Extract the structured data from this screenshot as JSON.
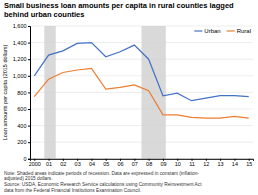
{
  "chart_data": {
    "type": "line",
    "title": "Small business loan amounts per capita in rural counties lagged behind urban counties",
    "y_label": "Loan amounts per capita (2015 dollars)",
    "categories": [
      "2000",
      "01",
      "02",
      "03",
      "04",
      "05",
      "06",
      "07",
      "08",
      "09",
      "10",
      "11",
      "12",
      "13",
      "14",
      "15"
    ],
    "series": [
      {
        "name": "Urban",
        "color": "#4472C4",
        "values": [
          1000,
          1250,
          1300,
          1390,
          1400,
          1230,
          1290,
          1370,
          1200,
          760,
          790,
          700,
          730,
          760,
          760,
          750
        ]
      },
      {
        "name": "Rural",
        "color": "#ED7D31",
        "values": [
          750,
          960,
          1040,
          1070,
          1090,
          840,
          860,
          890,
          820,
          530,
          530,
          500,
          490,
          490,
          510,
          490
        ]
      }
    ],
    "shaded_bands": [
      [
        0.7,
        1.5
      ],
      [
        7.5,
        9.2
      ]
    ],
    "ylim": [
      0,
      1600
    ],
    "yticks": [
      0,
      200,
      400,
      600,
      800,
      {
        "value": 1000,
        "label": "1,000"
      },
      {
        "value": 1200,
        "label": "1,200"
      },
      {
        "value": 1400,
        "label": "1,400"
      },
      {
        "value": 1600,
        "label": "1,600"
      }
    ],
    "grid": true,
    "legend": "upper right",
    "notes": [
      "Note: Shaded areas indicate periods of recession. Data are expressed in constant (inflation-",
      "adjusted) 2015 dollars.",
      "Source: USDA, Economic Research Service calculations using Community Reinvestment Act",
      "data from the Federal Financial Institutions Examination Council."
    ]
  }
}
